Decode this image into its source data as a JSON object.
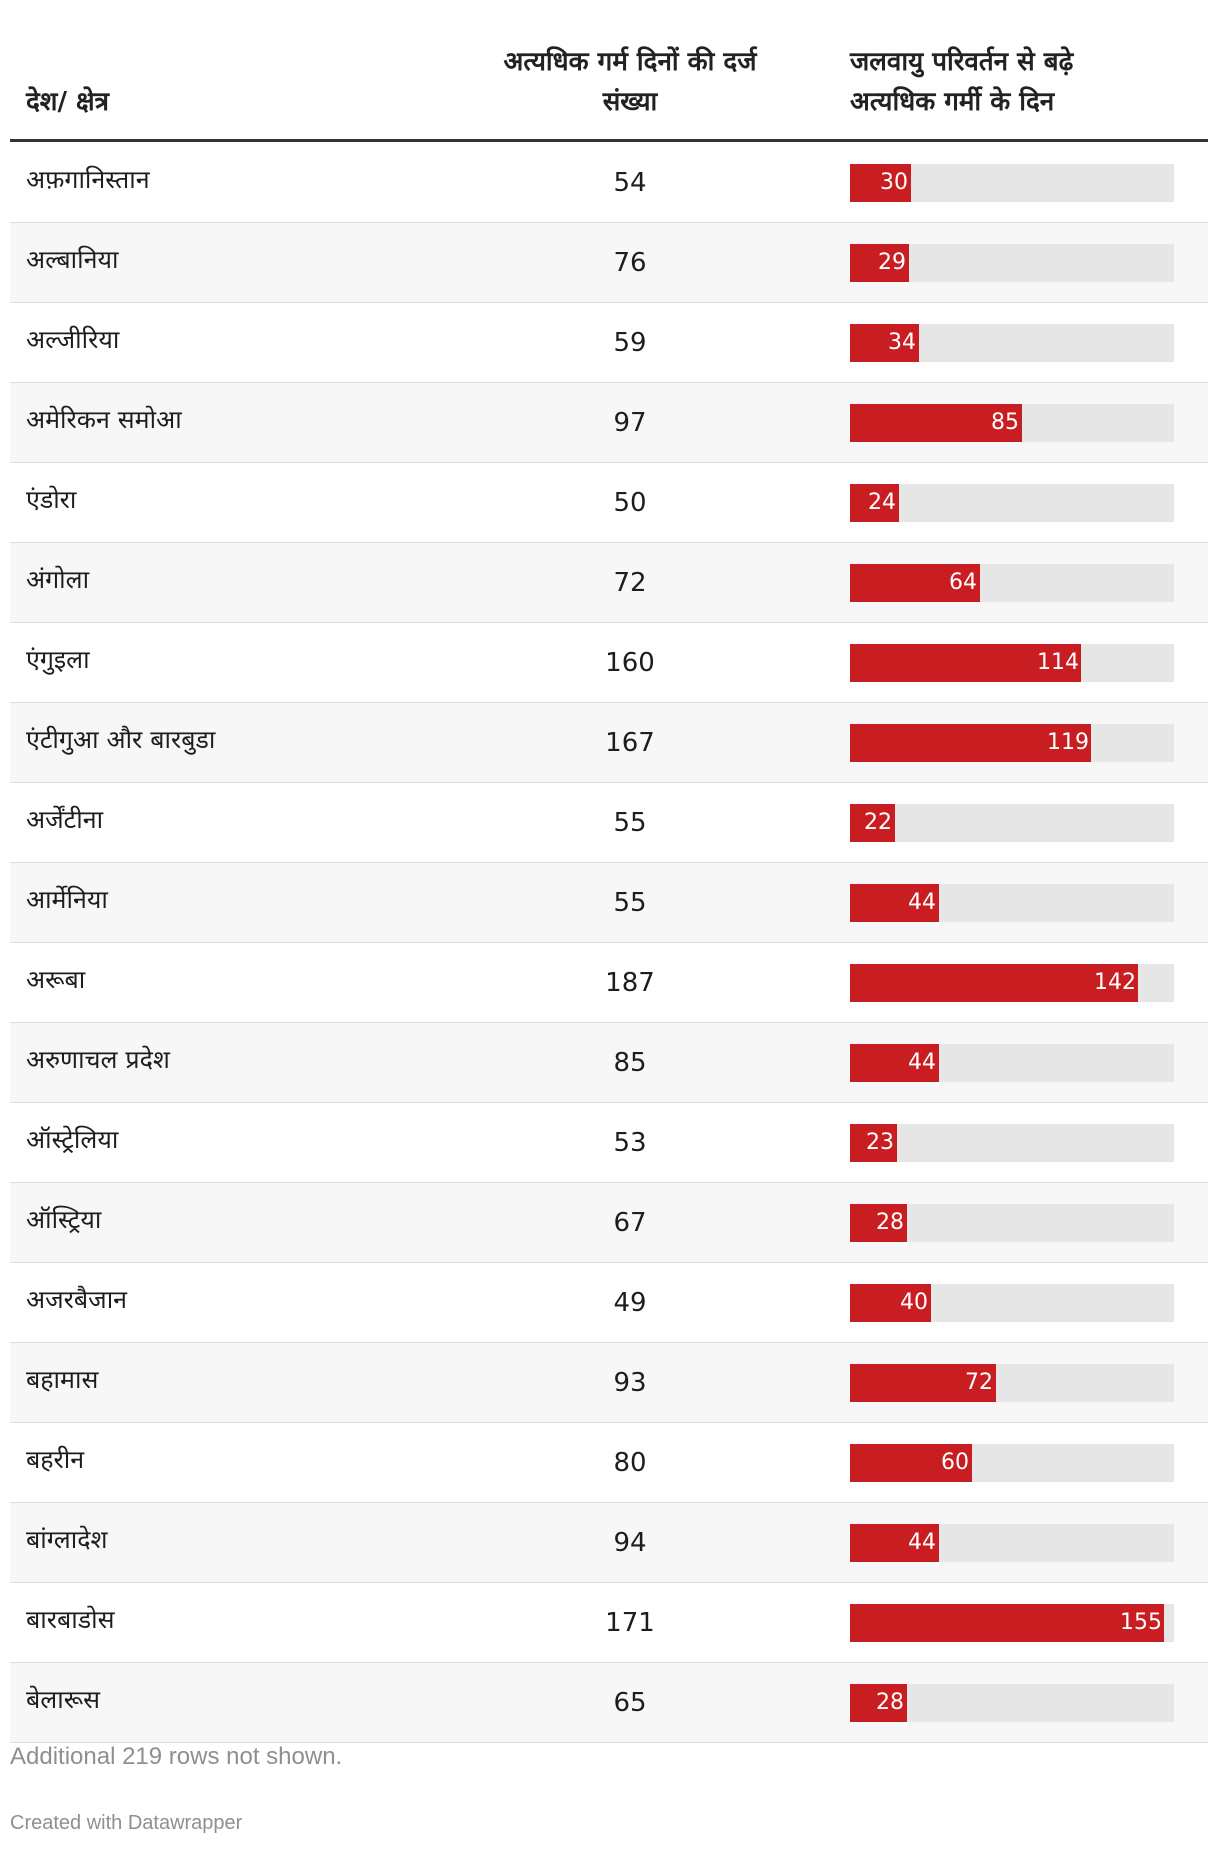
{
  "headers": {
    "country": "देश/ क्षेत्र",
    "recorded": "अत्यधिक गर्म दिनों की दर्ज\nसंख्या",
    "climate": "जलवायु परिवर्तन से बढ़े\nअत्यधिक गर्मी के दिन"
  },
  "colors": {
    "bar": "#c81d21",
    "track": "#e6e6e6"
  },
  "chart_data": {
    "type": "table",
    "columns": [
      "देश/ क्षेत्र",
      "अत्यधिक गर्म दिनों की दर्ज संख्या",
      "जलवायु परिवर्तन से बढ़े अत्यधिक गर्मी के दिन"
    ],
    "bar_max": 160,
    "rows": [
      {
        "country": "अफ़गानिस्तान",
        "recorded": 54,
        "climate": 30
      },
      {
        "country": "अल्बानिया",
        "recorded": 76,
        "climate": 29
      },
      {
        "country": "अल्जीरिया",
        "recorded": 59,
        "climate": 34
      },
      {
        "country": "अमेरिकन समोआ",
        "recorded": 97,
        "climate": 85
      },
      {
        "country": "एंडोरा",
        "recorded": 50,
        "climate": 24
      },
      {
        "country": "अंगोला",
        "recorded": 72,
        "climate": 64
      },
      {
        "country": "एंगुइला",
        "recorded": 160,
        "climate": 114
      },
      {
        "country": "एंटीगुआ और बारबुडा",
        "recorded": 167,
        "climate": 119
      },
      {
        "country": "अर्जेंटीना",
        "recorded": 55,
        "climate": 22
      },
      {
        "country": "आर्मेनिया",
        "recorded": 55,
        "climate": 44
      },
      {
        "country": "अरूबा",
        "recorded": 187,
        "climate": 142
      },
      {
        "country": "अरुणाचल प्रदेश",
        "recorded": 85,
        "climate": 44
      },
      {
        "country": "ऑस्ट्रेलिया",
        "recorded": 53,
        "climate": 23
      },
      {
        "country": "ऑस्ट्रिया",
        "recorded": 67,
        "climate": 28
      },
      {
        "country": "अजरबैजान",
        "recorded": 49,
        "climate": 40
      },
      {
        "country": "बहामास",
        "recorded": 93,
        "climate": 72
      },
      {
        "country": "बहरीन",
        "recorded": 80,
        "climate": 60
      },
      {
        "country": "बांग्लादेश",
        "recorded": 94,
        "climate": 44
      },
      {
        "country": "बारबाडोस",
        "recorded": 171,
        "climate": 155
      },
      {
        "country": "बेलारूस",
        "recorded": 65,
        "climate": 28
      }
    ]
  },
  "footer": {
    "note": "Additional 219 rows not shown.",
    "credit": "Created with Datawrapper"
  }
}
